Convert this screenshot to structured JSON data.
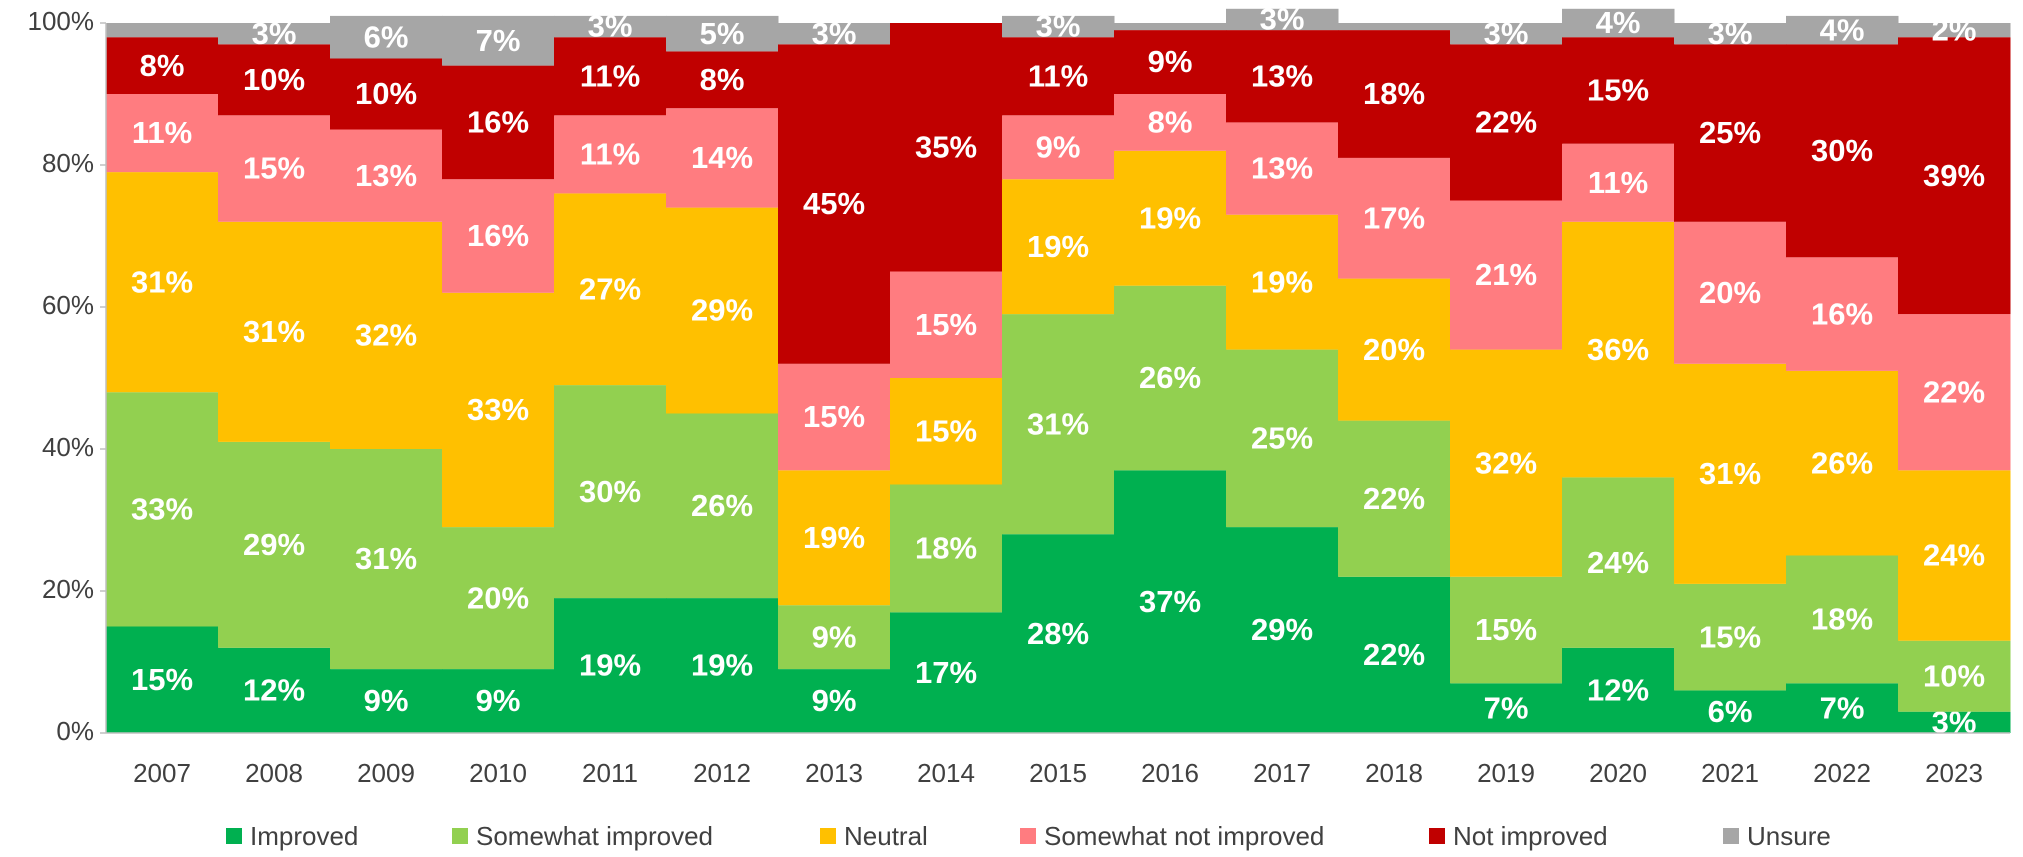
{
  "chart_data": {
    "type": "stacked_bar",
    "categories": [
      "2007",
      "2008",
      "2009",
      "2010",
      "2011",
      "2012",
      "2013",
      "2014",
      "2015",
      "2016",
      "2017",
      "2018",
      "2019",
      "2020",
      "2021",
      "2022",
      "2023"
    ],
    "series": [
      {
        "name": "Improved",
        "color": "#00b050",
        "values": [
          15,
          12,
          9,
          9,
          19,
          19,
          9,
          17,
          28,
          37,
          29,
          22,
          7,
          12,
          6,
          7,
          3
        ],
        "value_labels": [
          "15%",
          "12%",
          "9%",
          "9%",
          "19%",
          "19%",
          "9%",
          "17%",
          "28%",
          "37%",
          "29%",
          "22%",
          "7%",
          "12%",
          "6%",
          "7%",
          "3%"
        ]
      },
      {
        "name": "Somewhat improved",
        "color": "#92d050",
        "values": [
          33,
          29,
          31,
          20,
          30,
          26,
          9,
          18,
          31,
          26,
          25,
          22,
          15,
          24,
          15,
          18,
          10
        ],
        "value_labels": [
          "33%",
          "29%",
          "31%",
          "20%",
          "30%",
          "26%",
          "9%",
          "18%",
          "31%",
          "26%",
          "25%",
          "22%",
          "15%",
          "24%",
          "15%",
          "18%",
          "10%"
        ]
      },
      {
        "name": "Neutral",
        "color": "#ffc000",
        "values": [
          31,
          31,
          32,
          33,
          27,
          29,
          19,
          15,
          19,
          19,
          19,
          20,
          32,
          36,
          31,
          26,
          24
        ],
        "value_labels": [
          "31%",
          "31%",
          "32%",
          "33%",
          "27%",
          "29%",
          "19%",
          "15%",
          "19%",
          "19%",
          "19%",
          "20%",
          "32%",
          "36%",
          "31%",
          "26%",
          "24%"
        ]
      },
      {
        "name": "Somewhat not improved",
        "color": "#ff7c80",
        "values": [
          11,
          15,
          13,
          16,
          11,
          14,
          15,
          15,
          9,
          8,
          13,
          17,
          21,
          11,
          20,
          16,
          22
        ],
        "value_labels": [
          "11%",
          "15%",
          "13%",
          "16%",
          "11%",
          "14%",
          "15%",
          "15%",
          "9%",
          "8%",
          "13%",
          "17%",
          "21%",
          "11%",
          "20%",
          "16%",
          "22%"
        ]
      },
      {
        "name": "Not improved",
        "color": "#c00000",
        "values": [
          8,
          10,
          10,
          16,
          11,
          8,
          45,
          35,
          11,
          9,
          13,
          18,
          22,
          15,
          25,
          30,
          39
        ],
        "value_labels": [
          "8%",
          "10%",
          "10%",
          "16%",
          "11%",
          "8%",
          "45%",
          "35%",
          "11%",
          "9%",
          "13%",
          "18%",
          "22%",
          "15%",
          "25%",
          "30%",
          "39%"
        ]
      },
      {
        "name": "Unsure",
        "color": "#a6a6a6",
        "values": [
          2,
          3,
          6,
          7,
          3,
          5,
          3,
          0,
          3,
          1,
          3,
          1,
          3,
          4,
          3,
          4,
          2
        ],
        "value_labels": [
          null,
          "3%",
          "6%",
          "7%",
          "3%",
          "5%",
          "3%",
          null,
          "3%",
          null,
          "3%",
          null,
          "3%",
          "4%",
          "3%",
          "4%",
          "2%"
        ]
      }
    ],
    "ylim": [
      0,
      100
    ],
    "yticks": [
      {
        "value": 0,
        "label": "0%"
      },
      {
        "value": 20,
        "label": "20%"
      },
      {
        "value": 40,
        "label": "40%"
      },
      {
        "value": 60,
        "label": "60%"
      },
      {
        "value": 80,
        "label": "80%"
      },
      {
        "value": 100,
        "label": "100%"
      }
    ],
    "legend": "bottom"
  }
}
